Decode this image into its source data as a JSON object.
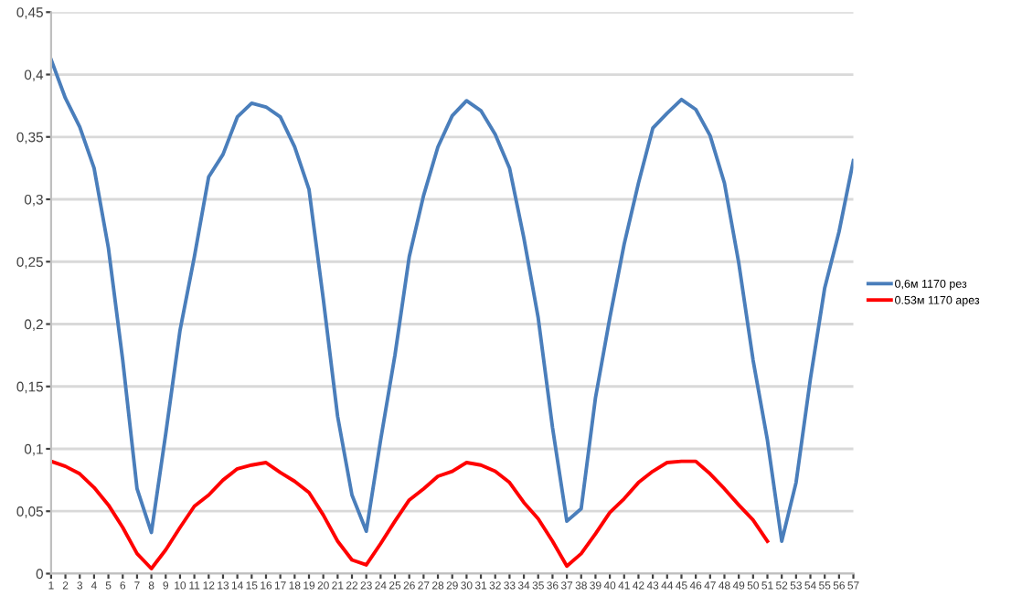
{
  "chart_data": {
    "type": "line",
    "categories": [
      "1",
      "2",
      "3",
      "4",
      "5",
      "6",
      "7",
      "8",
      "9",
      "10",
      "11",
      "12",
      "13",
      "14",
      "15",
      "16",
      "17",
      "18",
      "19",
      "20",
      "21",
      "22",
      "23",
      "24",
      "25",
      "26",
      "27",
      "28",
      "29",
      "30",
      "31",
      "32",
      "33",
      "34",
      "35",
      "36",
      "37",
      "38",
      "39",
      "40",
      "41",
      "42",
      "43",
      "44",
      "45",
      "46",
      "47",
      "48",
      "49",
      "50",
      "51",
      "52",
      "53",
      "54",
      "55",
      "56",
      "57"
    ],
    "series": [
      {
        "name": "0,6м 1170 рез",
        "color": "#4a7ebb",
        "values": [
          0.412,
          0.381,
          0.358,
          0.325,
          0.261,
          0.171,
          0.068,
          0.033,
          0.112,
          0.195,
          0.254,
          0.318,
          0.336,
          0.366,
          0.377,
          0.374,
          0.366,
          0.342,
          0.308,
          0.22,
          0.126,
          0.063,
          0.034,
          0.107,
          0.175,
          0.254,
          0.303,
          0.342,
          0.367,
          0.379,
          0.371,
          0.352,
          0.325,
          0.269,
          0.205,
          0.117,
          0.042,
          0.052,
          0.141,
          0.205,
          0.264,
          0.313,
          0.357,
          0.369,
          0.38,
          0.372,
          0.351,
          0.313,
          0.249,
          0.171,
          0.107,
          0.026,
          0.073,
          0.156,
          0.229,
          0.274,
          0.331
        ]
      },
      {
        "name": "0.53м 1170 арез",
        "color": "#ff0000",
        "values": [
          0.09,
          0.086,
          0.08,
          0.069,
          0.055,
          0.037,
          0.016,
          0.004,
          0.019,
          0.037,
          0.054,
          0.063,
          0.075,
          0.084,
          0.087,
          0.089,
          0.081,
          0.074,
          0.065,
          0.047,
          0.026,
          0.011,
          0.007,
          0.024,
          0.042,
          0.059,
          0.068,
          0.078,
          0.082,
          0.089,
          0.087,
          0.082,
          0.073,
          0.057,
          0.044,
          0.026,
          0.006,
          0.016,
          0.032,
          0.049,
          0.06,
          0.073,
          0.082,
          0.089,
          0.09,
          0.09,
          0.08,
          0.068,
          0.055,
          0.043,
          0.026,
          null,
          null,
          null,
          null,
          null,
          null
        ]
      }
    ],
    "ylim": [
      0,
      0.45
    ],
    "yticks": [
      0,
      {
        "value": 0.05,
        "label": "0,05"
      },
      {
        "value": 0.1,
        "label": "0,1"
      },
      {
        "value": 0.15,
        "label": "0,15"
      },
      {
        "value": 0.2,
        "label": "0,2"
      },
      {
        "value": 0.25,
        "label": "0,25"
      },
      {
        "value": 0.3,
        "label": "0,3"
      },
      {
        "value": 0.35,
        "label": "0,35"
      },
      {
        "value": 0.4,
        "label": "0,4"
      },
      {
        "value": 0.45,
        "label": "0,45"
      }
    ],
    "grid": "y",
    "legend": "right",
    "marker": "none",
    "line_style": "solid"
  }
}
